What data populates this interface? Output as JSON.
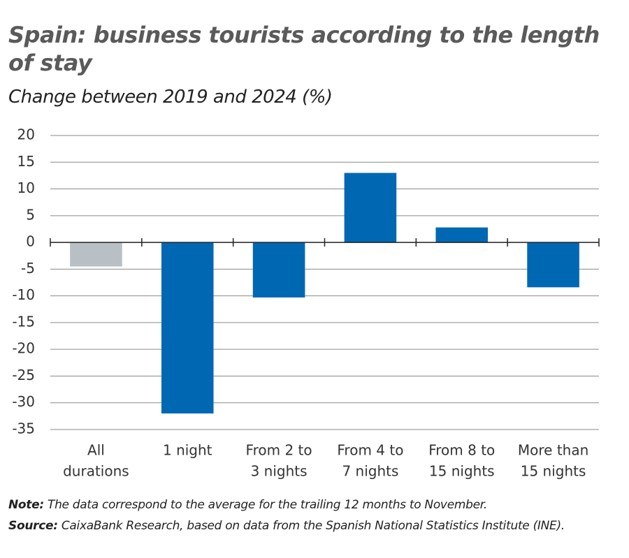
{
  "chart_data": {
    "type": "bar",
    "title": "Spain: business tourists according to the length of stay",
    "subtitle": "Change between 2019 and 2024 (%)",
    "categories": [
      [
        "All",
        "durations"
      ],
      [
        "1 night"
      ],
      [
        "From 2 to",
        "3 nights"
      ],
      [
        "From 4 to",
        "7 nights"
      ],
      [
        "From 8 to",
        "15 nights"
      ],
      [
        "More than",
        "15 nights"
      ]
    ],
    "values": [
      -4.5,
      -32,
      -10.3,
      13,
      2.8,
      -8.4
    ],
    "colors": [
      "#b8c0c6",
      "#0068b3",
      "#0068b3",
      "#0068b3",
      "#0068b3",
      "#0068b3"
    ],
    "ylim": [
      -35,
      20
    ],
    "yticks": [
      20,
      15,
      10,
      5,
      0,
      -5,
      -10,
      -15,
      -20,
      -25,
      -30,
      -35
    ],
    "grid": true,
    "note": {
      "label": "Note:",
      "text": "The data correspond to the average for the trailing 12 months to November."
    },
    "source": {
      "label": "Source:",
      "text": "CaixaBank Research, based on data from the Spanish National Statistics Institute (INE)."
    }
  }
}
